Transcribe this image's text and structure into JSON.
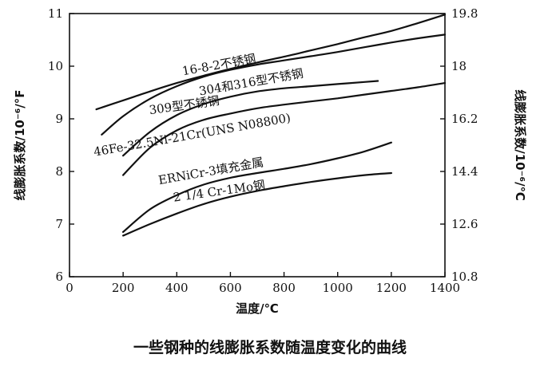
{
  "chart_data": {
    "type": "line",
    "caption": "一些钢种的线膨胀系数随温度变化的曲线",
    "xlabel": "温度/℃",
    "ylabel_left": "线膨胀系数/10⁻⁶/°F",
    "ylabel_right": "线膨胀系数/10⁻⁶/℃",
    "xlim": [
      0,
      1400
    ],
    "ylim_left": [
      6,
      11
    ],
    "ylim_right": [
      10.8,
      19.8
    ],
    "x_ticks": [
      "0",
      "200",
      "400",
      "600",
      "800",
      "1000",
      "1200",
      "1400"
    ],
    "y_ticks_left": [
      "6",
      "7",
      "8",
      "9",
      "10",
      "11"
    ],
    "y_ticks_right": [
      "10.8",
      "12.6",
      "14.4",
      "16.2",
      "18",
      "19.8"
    ],
    "grid": false,
    "series": [
      {
        "name": "16-8-2不锈钢",
        "x": [
          100,
          200,
          300,
          400,
          500,
          600,
          700,
          800,
          900,
          1000,
          1100,
          1200,
          1300,
          1400
        ],
        "y": [
          9.18,
          9.35,
          9.52,
          9.68,
          9.82,
          9.95,
          10.07,
          10.18,
          10.3,
          10.42,
          10.55,
          10.67,
          10.82,
          10.98
        ]
      },
      {
        "name": "304和316型不锈钢",
        "x": [
          120,
          200,
          300,
          400,
          500,
          600,
          700,
          800,
          900,
          1000,
          1100,
          1200,
          1300,
          1400
        ],
        "y": [
          8.7,
          9.05,
          9.38,
          9.62,
          9.8,
          9.93,
          10.03,
          10.11,
          10.19,
          10.27,
          10.36,
          10.45,
          10.53,
          10.6
        ]
      },
      {
        "name": "309型不锈钢",
        "x": [
          200,
          300,
          400,
          500,
          600,
          700,
          800,
          900,
          1000,
          1100,
          1150
        ],
        "y": [
          8.3,
          8.75,
          9.07,
          9.28,
          9.42,
          9.52,
          9.58,
          9.62,
          9.66,
          9.7,
          9.72
        ]
      },
      {
        "name": "46Fe-32.5Ni-21Cr(UNS N08800)",
        "x": [
          200,
          300,
          400,
          500,
          600,
          700,
          800,
          900,
          1000,
          1100,
          1200,
          1300,
          1400
        ],
        "y": [
          7.93,
          8.45,
          8.78,
          8.98,
          9.1,
          9.2,
          9.27,
          9.33,
          9.39,
          9.46,
          9.53,
          9.6,
          9.68
        ]
      },
      {
        "name": "ERNiCr-3填充金属",
        "x": [
          200,
          300,
          400,
          500,
          600,
          700,
          800,
          900,
          1000,
          1100,
          1200
        ],
        "y": [
          6.85,
          7.28,
          7.55,
          7.75,
          7.88,
          7.97,
          8.05,
          8.14,
          8.25,
          8.38,
          8.55
        ]
      },
      {
        "name": "2 1/4 Cr-1Mo钢",
        "x": [
          200,
          300,
          400,
          500,
          600,
          700,
          800,
          900,
          1000,
          1100,
          1200
        ],
        "y": [
          6.78,
          7.0,
          7.2,
          7.38,
          7.52,
          7.63,
          7.72,
          7.8,
          7.87,
          7.93,
          7.97
        ]
      }
    ],
    "curve_labels": [
      {
        "series": 0,
        "text": "16-8-2不锈钢",
        "x": 560,
        "y": 9.95
      },
      {
        "series": 1,
        "text": "304和316型不锈钢",
        "x": 680,
        "y": 9.62
      },
      {
        "series": 2,
        "text": "309型不锈钢",
        "x": 430,
        "y": 9.18
      },
      {
        "series": 3,
        "text": "46Fe-32.5Ni-21Cr(UNS N08800)",
        "x": 460,
        "y": 8.62
      },
      {
        "series": 4,
        "text": "ERNiCr-3填充金属",
        "x": 530,
        "y": 7.93
      },
      {
        "series": 5,
        "text": "2 1/4 Cr-1Mo钢",
        "x": 560,
        "y": 7.55
      }
    ]
  }
}
